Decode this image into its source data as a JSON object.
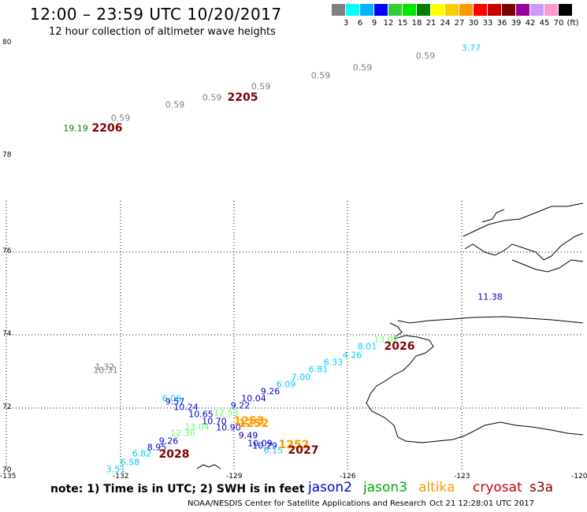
{
  "header": {
    "title": "12:00 – 23:59 UTC 10/20/2017",
    "subtitle": "12 hour collection of altimeter wave heights"
  },
  "scale": {
    "labels": [
      "3",
      "6",
      "9",
      "12",
      "15",
      "18",
      "21",
      "24",
      "27",
      "30",
      "33",
      "36",
      "39",
      "42",
      "45",
      "70",
      "(ft)"
    ],
    "colors": [
      "#808080",
      "#00ffff",
      "#00b4ff",
      "#0000ff",
      "#33cc33",
      "#00e600",
      "#008000",
      "#ffff00",
      "#ffcc00",
      "#ff9900",
      "#ff0000",
      "#cc0000",
      "#800000",
      "#990099",
      "#cc99ff",
      "#ff99cc",
      "#000000"
    ]
  },
  "axes": {
    "lat_labels": [
      "80",
      "78",
      "76",
      "74",
      "72",
      "70"
    ],
    "lon_labels": [
      "-135",
      "-132",
      "-129",
      "-126",
      "-123",
      "-120"
    ]
  },
  "observations": [
    {
      "t": "3.77",
      "c": "#00ccff"
    },
    {
      "t": "0.59",
      "c": "#808080"
    },
    {
      "t": "0.59",
      "c": "#808080"
    },
    {
      "t": "0.59",
      "c": "#808080"
    },
    {
      "t": "0.59",
      "c": "#808080"
    },
    {
      "t": "0.59",
      "c": "#808080"
    },
    {
      "t": "0.59",
      "c": "#808080"
    },
    {
      "t": "0.59",
      "c": "#808080"
    },
    {
      "t": "19.19",
      "c": "#008000"
    },
    {
      "t": "11.38",
      "c": "#0000cc"
    },
    {
      "t": "13.02",
      "c": "#66ff66"
    },
    {
      "t": "8.01",
      "c": "#00ccff"
    },
    {
      "t": "4.26",
      "c": "#00ccff"
    },
    {
      "t": "6.33",
      "c": "#00ccff"
    },
    {
      "t": "6.81",
      "c": "#00ccff"
    },
    {
      "t": "7.00",
      "c": "#00ccff"
    },
    {
      "t": "6.09",
      "c": "#00ccff"
    },
    {
      "t": "9.26",
      "c": "#0000cc"
    },
    {
      "t": "10.04",
      "c": "#0000cc"
    },
    {
      "t": "9.22",
      "c": "#0000cc"
    },
    {
      "t": "1.32",
      "c": "#808080"
    },
    {
      "t": "10.31",
      "c": "#808080"
    },
    {
      "t": "6.06",
      "c": "#00ccff"
    },
    {
      "t": "9.57",
      "c": "#0000cc"
    },
    {
      "t": "10.24",
      "c": "#0000cc"
    },
    {
      "t": "10.65",
      "c": "#0000cc"
    },
    {
      "t": "12.53",
      "c": "#66ff66"
    },
    {
      "t": "10.70",
      "c": "#0000cc"
    },
    {
      "t": "13.04",
      "c": "#66ff66"
    },
    {
      "t": "10.90",
      "c": "#0000cc"
    },
    {
      "t": "12.36",
      "c": "#66ff66"
    },
    {
      "t": "9.49",
      "c": "#0000cc"
    },
    {
      "t": "10.09",
      "c": "#0000cc"
    },
    {
      "t": "10.29",
      "c": "#0000cc"
    },
    {
      "t": "6.15",
      "c": "#00ccff"
    },
    {
      "t": "9.26",
      "c": "#0000cc"
    },
    {
      "t": "8.95",
      "c": "#0000cc"
    },
    {
      "t": "6.82",
      "c": "#00ccff"
    },
    {
      "t": "6.58",
      "c": "#00ccff"
    },
    {
      "t": "3.51",
      "c": "#00ccff"
    }
  ],
  "pass_labels": [
    {
      "t": "2205",
      "c": "#800000"
    },
    {
      "t": "2206",
      "c": "#800000"
    },
    {
      "t": "2026",
      "c": "#800000"
    },
    {
      "t": "1253",
      "c": "#ff9900"
    },
    {
      "t": "1252",
      "c": "#ff9900"
    },
    {
      "t": "1252",
      "c": "#ff9900"
    },
    {
      "t": "2027",
      "c": "#800000"
    },
    {
      "t": "2028",
      "c": "#800000"
    }
  ],
  "legend": {
    "note": "note: 1) Time is in UTC; 2) SWH is in feet",
    "satellites": [
      {
        "name": "jason2",
        "color": "#0000cc"
      },
      {
        "name": "jason3",
        "color": "#00aa00"
      },
      {
        "name": "altika",
        "color": "#ff9900"
      },
      {
        "name": "cryosat",
        "color": "#cc0000"
      },
      {
        "name": "s3a",
        "color": "#800000"
      }
    ]
  },
  "footer": {
    "credit": "NOAA/NESDIS Center for Satellite Applications and Research",
    "timestamp": "Oct 21 12:28:01 UTC 2017"
  }
}
